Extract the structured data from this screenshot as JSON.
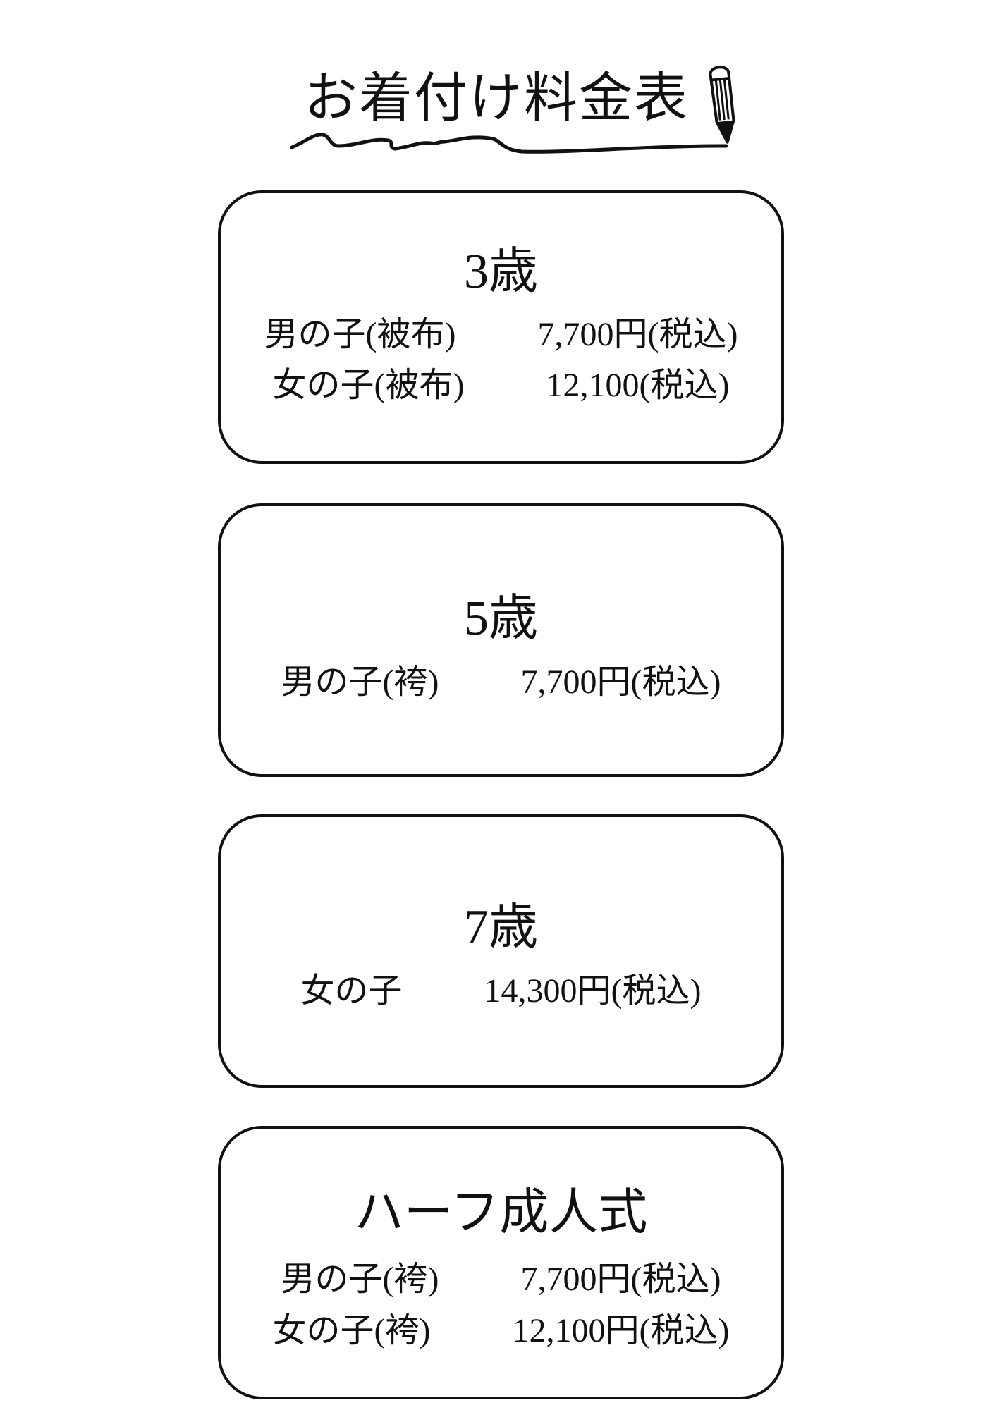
{
  "title": "お着付け料金表",
  "decorations": {
    "underline": "wavy-line",
    "pencil": "pencil-icon"
  },
  "sections": [
    {
      "heading": "3歳",
      "rows": [
        {
          "label": "男の子(被布)",
          "price": "7,700円(税込)"
        },
        {
          "label": "女の子(被布)",
          "price": "12,100(税込)"
        }
      ]
    },
    {
      "heading": "5歳",
      "rows": [
        {
          "label": "男の子(袴)",
          "price": "7,700円(税込)"
        }
      ]
    },
    {
      "heading": "7歳",
      "rows": [
        {
          "label": "女の子",
          "price": "14,300円(税込)"
        }
      ]
    },
    {
      "heading": "ハーフ成人式",
      "rows": [
        {
          "label": "男の子(袴)",
          "price": "7,700円(税込)"
        },
        {
          "label": "女の子(袴)",
          "price": "12,100円(税込)"
        }
      ]
    }
  ]
}
